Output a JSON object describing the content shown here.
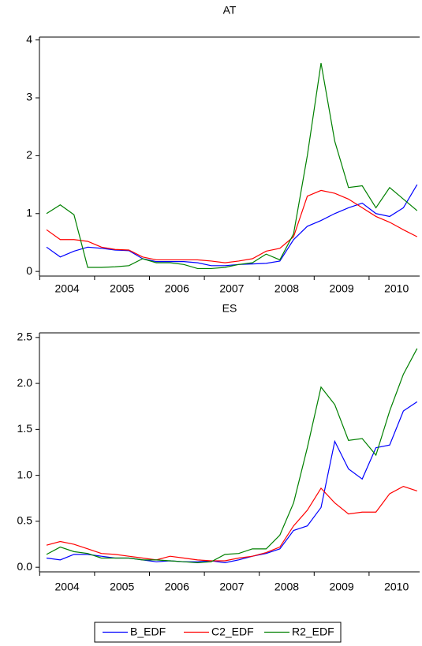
{
  "chart_data": [
    {
      "type": "line",
      "title": "AT",
      "categories": [
        null,
        "2004",
        null,
        null,
        null,
        "2005",
        null,
        null,
        null,
        "2006",
        null,
        null,
        null,
        "2007",
        null,
        null,
        null,
        "2008",
        null,
        null,
        null,
        "2009",
        null,
        null,
        null,
        "2010",
        null,
        null
      ],
      "ylim": [
        -0.08,
        4.05
      ],
      "yticks": [
        0,
        1,
        2,
        3,
        4
      ],
      "series": [
        {
          "name": "B_EDF",
          "color": "#0000ff",
          "values": [
            0.42,
            0.25,
            0.35,
            0.42,
            0.4,
            0.37,
            0.36,
            0.22,
            0.17,
            0.17,
            0.17,
            0.15,
            0.1,
            0.1,
            0.12,
            0.13,
            0.14,
            0.18,
            0.55,
            0.78,
            0.88,
            1.0,
            1.1,
            1.18,
            1.0,
            0.95,
            1.1,
            1.5
          ]
        },
        {
          "name": "C2_EDF",
          "color": "#ff0000",
          "values": [
            0.72,
            0.55,
            0.55,
            0.52,
            0.42,
            0.38,
            0.37,
            0.25,
            0.2,
            0.2,
            0.2,
            0.2,
            0.18,
            0.15,
            0.18,
            0.22,
            0.35,
            0.4,
            0.6,
            1.3,
            1.4,
            1.35,
            1.25,
            1.1,
            0.95,
            0.85,
            0.72,
            0.6
          ]
        },
        {
          "name": "R2_EDF",
          "color": "#008000",
          "values": [
            1.0,
            1.15,
            0.98,
            0.07,
            0.07,
            0.08,
            0.1,
            0.22,
            0.15,
            0.15,
            0.12,
            0.05,
            0.05,
            0.07,
            0.12,
            0.15,
            0.3,
            0.2,
            0.65,
            2.0,
            3.6,
            2.25,
            1.45,
            1.48,
            1.1,
            1.45,
            1.25,
            1.05
          ]
        }
      ]
    },
    {
      "type": "line",
      "title": "ES",
      "categories": [
        null,
        "2004",
        null,
        null,
        null,
        "2005",
        null,
        null,
        null,
        "2006",
        null,
        null,
        null,
        "2007",
        null,
        null,
        null,
        "2008",
        null,
        null,
        null,
        "2009",
        null,
        null,
        null,
        "2010",
        null,
        null
      ],
      "ylim": [
        -0.05,
        2.55
      ],
      "yticks": [
        {
          "value": 0,
          "label": "0.0"
        },
        0.5,
        {
          "value": 1,
          "label": "1.0"
        },
        1.5,
        {
          "value": 2,
          "label": "2.0"
        },
        2.5
      ],
      "series": [
        {
          "color": "#0000ff",
          "values": [
            0.1,
            0.08,
            0.14,
            0.14,
            0.12,
            0.1,
            0.1,
            0.08,
            0.06,
            0.07,
            0.06,
            0.06,
            0.07,
            0.05,
            0.08,
            0.12,
            0.15,
            0.2,
            0.4,
            0.45,
            0.65,
            1.37,
            1.07,
            0.96,
            1.3,
            1.33,
            1.7,
            1.8
          ]
        },
        {
          "color": "#ff0000",
          "values": [
            0.24,
            0.28,
            0.25,
            0.2,
            0.15,
            0.14,
            0.12,
            0.1,
            0.08,
            0.12,
            0.1,
            0.08,
            0.07,
            0.07,
            0.1,
            0.12,
            0.16,
            0.22,
            0.45,
            0.62,
            0.86,
            0.7,
            0.58,
            0.6,
            0.6,
            0.8,
            0.88,
            0.83
          ]
        },
        {
          "color": "#008000",
          "values": [
            0.14,
            0.22,
            0.17,
            0.15,
            0.1,
            0.1,
            0.1,
            0.08,
            0.08,
            0.07,
            0.06,
            0.05,
            0.06,
            0.14,
            0.15,
            0.2,
            0.2,
            0.35,
            0.7,
            1.3,
            1.96,
            1.77,
            1.38,
            1.4,
            1.22,
            1.7,
            2.1,
            2.38
          ]
        }
      ]
    }
  ]
}
